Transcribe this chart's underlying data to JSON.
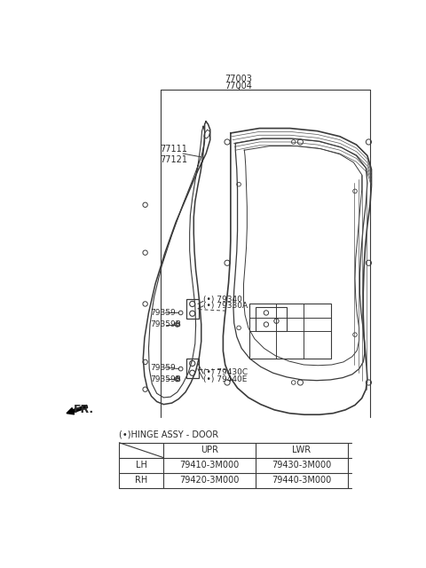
{
  "bg_color": "#ffffff",
  "line_color": "#3a3a3a",
  "text_color": "#2a2a2a",
  "fs_label": 6.5,
  "fs_title": 7,
  "fs_table": 7,
  "title_77003": "77003",
  "title_77004": "77004",
  "label_77111": "77111\n77121",
  "label_79340": "(•) 79340",
  "label_79330A": "(•) 79330A",
  "label_79359_u": "79359",
  "label_79359B_u": "79359B",
  "label_79359_l": "79359",
  "label_79359B_l": "79359B",
  "label_79430C": "(•) 79430C",
  "label_79440E": "(•) 79440E",
  "fr_label": "FR.",
  "hinge_label": "(•)HINGE ASSY - DOOR",
  "table_upr": "UPR",
  "table_lwr": "LWR",
  "table_lh": "LH",
  "table_rh": "RH",
  "table_lh_upr": "79410-3M000",
  "table_lh_lwr": "79430-3M000",
  "table_rh_upr": "79420-3M000",
  "table_rh_lwr": "79440-3M000"
}
